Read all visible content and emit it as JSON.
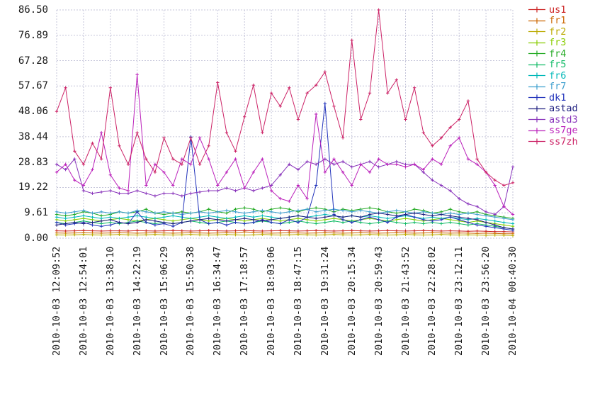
{
  "colors": {
    "background": "#ffffff",
    "grid": "#c6c6da",
    "tick_text": "#1a1a1a"
  },
  "chart_data": {
    "type": "line",
    "title": "",
    "xlabel": "",
    "ylabel": "",
    "ylim": [
      0,
      86.5
    ],
    "grid": true,
    "legend_position": "right",
    "marker": "plus",
    "y_tick_labels": [
      "86.50",
      "76.89",
      "67.28",
      "57.67",
      "48.06",
      "38.44",
      "28.83",
      "19.22",
      "9.61",
      "0.00"
    ],
    "y_tick_values": [
      86.5,
      76.89,
      67.28,
      57.67,
      48.06,
      38.44,
      28.83,
      19.22,
      9.61,
      0
    ],
    "x_labels": [
      "2010-10-03 12:09:52",
      "2010-10-03 12:54:01",
      "2010-10-03 13:38:10",
      "2010-10-03 14:22:19",
      "2010-10-03 15:06:29",
      "2010-10-03 15:50:38",
      "2010-10-03 16:34:47",
      "2010-10-03 17:18:57",
      "2010-10-03 18:03:06",
      "2010-10-03 18:47:15",
      "2010-10-03 19:31:24",
      "2010-10-03 20:15:34",
      "2010-10-03 20:59:43",
      "2010-10-03 21:43:52",
      "2010-10-03 22:28:02",
      "2010-10-03 23:12:11",
      "2010-10-03 23:56:20",
      "2010-10-04 00:40:30"
    ],
    "points_per_label_gap": 3,
    "series": [
      {
        "name": "us1",
        "color": "#cc2222",
        "values": [
          2.8,
          2.7,
          2.8,
          2.9,
          2.8,
          2.7,
          2.8,
          2.8,
          2.7,
          2.9,
          2.8,
          2.7,
          2.8,
          2.9,
          2.8,
          2.7,
          2.8,
          2.9,
          2.8,
          2.7,
          2.8,
          2.9,
          2.8,
          2.7,
          2.8,
          2.9,
          2.8,
          2.7,
          2.8,
          2.9,
          2.8,
          2.7,
          2.8,
          2.9,
          2.8,
          2.7,
          2.8,
          2.9,
          2.8,
          2.7,
          2.8,
          2.9,
          2.8,
          2.7,
          2.8,
          2.7,
          2.6,
          2.7,
          2.6,
          2.5,
          2.5,
          2.4
        ]
      },
      {
        "name": "fr1",
        "color": "#cc6600",
        "values": [
          2.0,
          1.9,
          2.0,
          2.1,
          2.0,
          1.9,
          2.0,
          2.1,
          2.0,
          1.9,
          2.0,
          2.1,
          2.0,
          1.9,
          2.0,
          2.1,
          2.0,
          1.9,
          2.0,
          2.1,
          2.0,
          2.4,
          2.2,
          2.0,
          1.9,
          2.0,
          2.1,
          2.0,
          1.9,
          2.0,
          2.1,
          2.0,
          1.9,
          2.0,
          2.1,
          2.0,
          1.9,
          2.0,
          2.1,
          2.0,
          1.9,
          2.0,
          2.1,
          2.0,
          1.9,
          2.0,
          1.9,
          1.8,
          1.9,
          1.8,
          1.7,
          1.7
        ]
      },
      {
        "name": "fr2",
        "color": "#bbaa00",
        "values": [
          1.3,
          1.2,
          1.3,
          1.4,
          1.3,
          1.2,
          1.3,
          1.4,
          1.3,
          1.2,
          1.3,
          1.4,
          1.3,
          1.2,
          1.3,
          1.4,
          1.3,
          1.2,
          1.3,
          1.4,
          1.3,
          1.2,
          1.3,
          1.4,
          1.3,
          1.2,
          1.3,
          1.4,
          1.3,
          1.2,
          1.3,
          1.4,
          1.3,
          1.2,
          1.3,
          1.4,
          1.3,
          1.2,
          1.3,
          1.4,
          1.3,
          1.2,
          1.3,
          1.4,
          1.3,
          1.2,
          1.3,
          1.2,
          1.1,
          1.2,
          1.1,
          1.0
        ]
      },
      {
        "name": "fr3",
        "color": "#88cc00",
        "values": [
          7,
          6.5,
          7,
          7.5,
          7,
          6.5,
          7,
          7.5,
          7,
          6.5,
          7,
          7.5,
          7,
          6.5,
          7,
          7.5,
          7,
          6.5,
          7,
          7.5,
          7,
          6.5,
          7,
          7.5,
          7,
          6.5,
          7,
          7.5,
          7,
          6.5,
          7,
          7.5,
          7,
          6.5,
          7,
          7.5,
          7,
          6.5,
          7,
          7.5,
          7,
          6.5,
          7,
          7.5,
          7,
          6.5,
          6,
          6.5,
          6,
          5.5,
          5,
          4.5
        ]
      },
      {
        "name": "fr4",
        "color": "#22aa22",
        "values": [
          9,
          8.5,
          9,
          10,
          9.5,
          8.5,
          9,
          10,
          9.5,
          10,
          11,
          9.5,
          9,
          9.5,
          10,
          9.5,
          10,
          11,
          10,
          9.5,
          11,
          11.5,
          11,
          10,
          11,
          11.5,
          11,
          10,
          11,
          11.5,
          11,
          10,
          11,
          10.5,
          11,
          11.5,
          11,
          10,
          9.5,
          10,
          11,
          10.5,
          9.5,
          10,
          11,
          10,
          9.5,
          10,
          9,
          8.5,
          8,
          7.5
        ]
      },
      {
        "name": "fr5",
        "color": "#11bb66",
        "values": [
          6,
          5.5,
          6,
          6.5,
          6,
          5.5,
          6,
          5.5,
          6,
          6.5,
          6,
          5.5,
          6,
          5.5,
          6,
          6.5,
          6,
          5.5,
          6,
          6.5,
          6,
          5.5,
          6,
          6.5,
          6,
          5.5,
          6,
          6.5,
          6,
          5.5,
          6,
          6.5,
          6,
          6.5,
          6,
          5.5,
          6,
          6.5,
          6,
          5.5,
          6,
          5.5,
          6,
          5.5,
          6,
          5.5,
          5,
          5.5,
          5,
          4.5,
          4,
          3.5
        ]
      },
      {
        "name": "fr6",
        "color": "#00b8b8",
        "values": [
          8,
          7.5,
          8,
          8.5,
          8,
          7.5,
          8,
          7.5,
          8,
          8.5,
          8,
          7.5,
          8,
          8.5,
          8,
          7.5,
          8,
          8.5,
          8,
          7.5,
          8,
          8.5,
          8,
          8.5,
          8,
          7.5,
          8,
          8.5,
          8,
          8.5,
          9,
          8.5,
          8,
          8.5,
          8,
          8.5,
          8,
          7.5,
          8,
          8.5,
          8,
          7.5,
          8,
          7.5,
          8,
          7.5,
          7,
          7.5,
          7,
          6.5,
          6,
          5.5
        ]
      },
      {
        "name": "fr7",
        "color": "#3d9fce",
        "values": [
          10,
          9.5,
          10,
          10.5,
          9.5,
          10,
          9.5,
          10,
          9.5,
          10.5,
          10,
          9.5,
          10,
          9.5,
          9,
          9.5,
          10,
          9.5,
          10,
          10.5,
          10,
          9.5,
          10,
          10.5,
          10,
          9.5,
          10,
          10.5,
          11,
          10,
          10.5,
          11,
          10.5,
          10,
          10.5,
          10,
          9.5,
          10,
          10.5,
          10,
          9.5,
          10,
          9.5,
          9,
          9.5,
          9,
          9.5,
          9,
          8.5,
          8,
          7.5,
          7
        ]
      },
      {
        "name": "dk1",
        "color": "#2233bb",
        "values": [
          6,
          5,
          5.5,
          6,
          5,
          4.5,
          5,
          6,
          5.5,
          10,
          6,
          5,
          5.5,
          4.5,
          6,
          38.4,
          7,
          5.5,
          6,
          5,
          6,
          5.5,
          6,
          7,
          6,
          5.5,
          7,
          6,
          8,
          20,
          51,
          9,
          7,
          6,
          7,
          8,
          7,
          6,
          8,
          9,
          8,
          7,
          6.5,
          7,
          8,
          7,
          6,
          5,
          4.5,
          4,
          3.5,
          3
        ]
      },
      {
        "name": "astad",
        "color": "#202080",
        "values": [
          5,
          5.5,
          6,
          5.5,
          6,
          6.5,
          7,
          6,
          5.5,
          6,
          7,
          6.5,
          6,
          5.5,
          6,
          6.5,
          7,
          7.5,
          7,
          6.5,
          7,
          7.5,
          7,
          6.5,
          7,
          7.5,
          8,
          8.5,
          8,
          7.5,
          8,
          8.5,
          8,
          8.5,
          8,
          9,
          9.5,
          9,
          8.5,
          9,
          9.5,
          9,
          8.5,
          9,
          8.5,
          8,
          7.5,
          7,
          6,
          5,
          4,
          3.5
        ]
      },
      {
        "name": "astd3",
        "color": "#8833bb",
        "values": [
          28,
          26,
          30,
          18,
          17,
          17.5,
          18,
          17,
          17,
          18,
          17,
          16,
          17,
          17,
          16,
          17,
          17.5,
          18,
          18,
          19,
          18,
          19,
          18,
          19,
          20,
          24,
          28,
          26,
          29,
          28,
          30,
          28,
          29,
          27,
          28,
          29,
          27,
          28,
          29,
          28,
          28,
          25,
          22,
          20,
          18,
          15,
          13,
          12,
          10,
          9,
          12,
          27
        ]
      },
      {
        "name": "ss7ge",
        "color": "#bb22bb",
        "values": [
          25,
          28,
          22,
          20,
          26,
          40,
          24,
          19,
          18,
          62,
          20,
          28,
          25,
          20,
          30,
          28,
          38,
          30,
          20,
          25,
          30,
          19,
          25,
          30,
          18,
          15,
          14,
          20,
          15,
          47,
          25,
          30,
          25,
          20,
          28,
          25,
          30,
          28,
          28,
          27,
          28,
          26,
          30,
          28,
          35,
          38,
          30,
          28,
          25,
          20,
          12,
          9
        ]
      },
      {
        "name": "ss7zh",
        "color": "#cc2266",
        "values": [
          48,
          57,
          33,
          28,
          36,
          30,
          57,
          35,
          28,
          40,
          30,
          25,
          38,
          30,
          28,
          38,
          28,
          35,
          59,
          40,
          33,
          46,
          58,
          40,
          55,
          50,
          57,
          45,
          55,
          58,
          63,
          50,
          38,
          75,
          45,
          55,
          86.5,
          55,
          60,
          45,
          57,
          40,
          35,
          38,
          42,
          45,
          52,
          30,
          25,
          22,
          20,
          21
        ]
      }
    ]
  }
}
